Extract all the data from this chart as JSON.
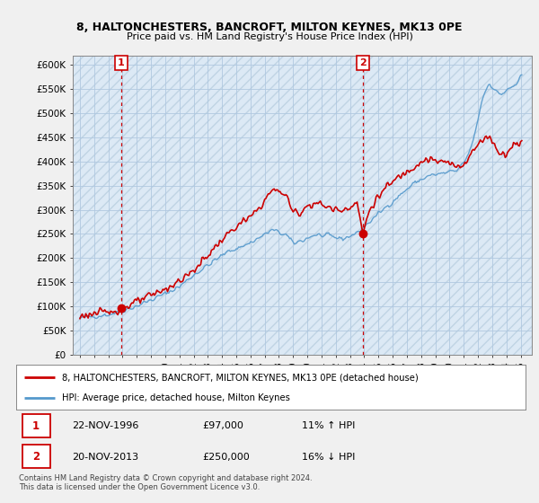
{
  "title1": "8, HALTONCHESTERS, BANCROFT, MILTON KEYNES, MK13 0PE",
  "title2": "Price paid vs. HM Land Registry's House Price Index (HPI)",
  "legend_line1": "8, HALTONCHESTERS, BANCROFT, MILTON KEYNES, MK13 0PE (detached house)",
  "legend_line2": "HPI: Average price, detached house, Milton Keynes",
  "annotation1_date": "22-NOV-1996",
  "annotation1_price": "£97,000",
  "annotation1_hpi": "11% ↑ HPI",
  "annotation2_date": "20-NOV-2013",
  "annotation2_price": "£250,000",
  "annotation2_hpi": "16% ↓ HPI",
  "footnote": "Contains HM Land Registry data © Crown copyright and database right 2024.\nThis data is licensed under the Open Government Licence v3.0.",
  "sale1_year": 1996.9,
  "sale1_price": 97000,
  "sale2_year": 2013.9,
  "sale2_price": 250000,
  "ylim": [
    0,
    620000
  ],
  "yticks": [
    0,
    50000,
    100000,
    150000,
    200000,
    250000,
    300000,
    350000,
    400000,
    450000,
    500000,
    550000,
    600000
  ],
  "background_color": "#f0f0f0",
  "plot_bg_color": "#dce9f5",
  "grid_color": "#b0c8e0",
  "red_line_color": "#cc0000",
  "blue_line_color": "#5599cc",
  "sale_dot_color": "#cc0000",
  "vline_color": "#cc0000",
  "xlim_left": 1993.5,
  "xlim_right": 2025.8,
  "xtick_years": [
    1994,
    1995,
    1996,
    1997,
    1998,
    1999,
    2000,
    2001,
    2002,
    2003,
    2004,
    2005,
    2006,
    2007,
    2008,
    2009,
    2010,
    2011,
    2012,
    2013,
    2014,
    2015,
    2016,
    2017,
    2018,
    2019,
    2020,
    2021,
    2022,
    2023,
    2024,
    2025
  ],
  "hatch_color": "#c8d8e8"
}
